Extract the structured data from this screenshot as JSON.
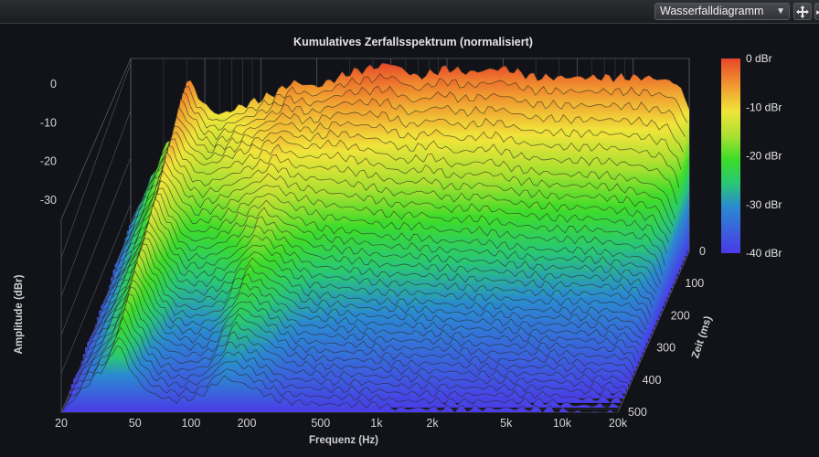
{
  "toolbar": {
    "view_selected": "Wasserfalldiagramm",
    "move_icon": "move-icon",
    "extra_icon": "arrow-icon"
  },
  "chart_data": {
    "type": "waterfall",
    "title": "Kumulatives Zerfallsspektrum (normalisiert)",
    "xlabel": "Frequenz (Hz)",
    "ylabel": "Amplitude (dBr)",
    "zlabel": "Zeit (ms)",
    "x_scale": "log",
    "x_ticks": [
      "20",
      "50",
      "100",
      "200",
      "500",
      "1k",
      "2k",
      "5k",
      "10k",
      "20k"
    ],
    "x_tick_values": [
      20,
      50,
      100,
      200,
      500,
      1000,
      2000,
      5000,
      10000,
      20000
    ],
    "xlim": [
      20,
      20000
    ],
    "y_ticks": [
      "0",
      "-10",
      "-20",
      "-30"
    ],
    "y_tick_values": [
      0,
      -10,
      -20,
      -30
    ],
    "ylim": [
      -40,
      0
    ],
    "z_ticks": [
      "0",
      "100",
      "200",
      "300",
      "400",
      "500"
    ],
    "z_tick_values": [
      0,
      100,
      200,
      300,
      400,
      500
    ],
    "zlim": [
      0,
      500
    ],
    "colorbar": {
      "labels": [
        "0 dBr",
        "-10 dBr",
        "-20 dBr",
        "-30 dBr",
        "-40 dBr"
      ],
      "values": [
        0,
        -10,
        -20,
        -30,
        -40
      ],
      "colors": [
        "#e8462a",
        "#f0e43a",
        "#3ddc2a",
        "#2a8ad0",
        "#4a3ae8"
      ]
    },
    "slice_count": 36,
    "slice_profiles_dbr": [
      {
        "time_ms": 0,
        "points": [
          [
            20,
            -34
          ],
          [
            36,
            -12
          ],
          [
            40,
            -3
          ],
          [
            50,
            -9
          ],
          [
            60,
            -11
          ],
          [
            80,
            -9
          ],
          [
            110,
            -7
          ],
          [
            150,
            -4
          ],
          [
            200,
            -5
          ],
          [
            300,
            -2
          ],
          [
            500,
            0
          ],
          [
            700,
            -3
          ],
          [
            1000,
            -1
          ],
          [
            1300,
            -2
          ],
          [
            2000,
            -1
          ],
          [
            3000,
            -3
          ],
          [
            5000,
            -3
          ],
          [
            8000,
            -3
          ],
          [
            12000,
            -3
          ],
          [
            17000,
            -4
          ],
          [
            20000,
            -9
          ]
        ]
      },
      {
        "time_ms": 100,
        "points": [
          [
            20,
            -35
          ],
          [
            36,
            -14
          ],
          [
            40,
            -6
          ],
          [
            50,
            -12
          ],
          [
            60,
            -14
          ],
          [
            80,
            -12
          ],
          [
            110,
            -10
          ],
          [
            150,
            -8
          ],
          [
            200,
            -10
          ],
          [
            300,
            -9
          ],
          [
            500,
            -11
          ],
          [
            700,
            -13
          ],
          [
            1000,
            -12
          ],
          [
            1300,
            -14
          ],
          [
            2000,
            -13
          ],
          [
            3000,
            -15
          ],
          [
            5000,
            -16
          ],
          [
            8000,
            -16
          ],
          [
            12000,
            -17
          ],
          [
            17000,
            -19
          ],
          [
            20000,
            -25
          ]
        ]
      },
      {
        "time_ms": 200,
        "points": [
          [
            20,
            -37
          ],
          [
            36,
            -18
          ],
          [
            40,
            -10
          ],
          [
            50,
            -17
          ],
          [
            60,
            -21
          ],
          [
            80,
            -20
          ],
          [
            110,
            -17
          ],
          [
            150,
            -14
          ],
          [
            200,
            -17
          ],
          [
            300,
            -20
          ],
          [
            500,
            -21
          ],
          [
            700,
            -22
          ],
          [
            1000,
            -22
          ],
          [
            1300,
            -23
          ],
          [
            2000,
            -23
          ],
          [
            3000,
            -24
          ],
          [
            5000,
            -25
          ],
          [
            8000,
            -25
          ],
          [
            12000,
            -26
          ],
          [
            17000,
            -27
          ],
          [
            20000,
            -32
          ]
        ]
      },
      {
        "time_ms": 300,
        "points": [
          [
            20,
            -38
          ],
          [
            36,
            -20
          ],
          [
            40,
            -13
          ],
          [
            50,
            -21
          ],
          [
            60,
            -26
          ],
          [
            80,
            -27
          ],
          [
            110,
            -25
          ],
          [
            150,
            -19
          ],
          [
            200,
            -22
          ],
          [
            300,
            -27
          ],
          [
            500,
            -28
          ],
          [
            700,
            -29
          ],
          [
            1000,
            -29
          ],
          [
            1300,
            -29
          ],
          [
            2000,
            -30
          ],
          [
            3000,
            -30
          ],
          [
            5000,
            -31
          ],
          [
            8000,
            -31
          ],
          [
            12000,
            -31
          ],
          [
            17000,
            -32
          ],
          [
            20000,
            -35
          ]
        ]
      },
      {
        "time_ms": 400,
        "points": [
          [
            20,
            -39
          ],
          [
            36,
            -23
          ],
          [
            40,
            -16
          ],
          [
            50,
            -25
          ],
          [
            60,
            -30
          ],
          [
            80,
            -32
          ],
          [
            110,
            -31
          ],
          [
            150,
            -24
          ],
          [
            200,
            -27
          ],
          [
            300,
            -32
          ],
          [
            500,
            -33
          ],
          [
            700,
            -33
          ],
          [
            1000,
            -34
          ],
          [
            1300,
            -34
          ],
          [
            2000,
            -34
          ],
          [
            3000,
            -35
          ],
          [
            5000,
            -35
          ],
          [
            8000,
            -35
          ],
          [
            12000,
            -36
          ],
          [
            17000,
            -36
          ],
          [
            20000,
            -38
          ]
        ]
      },
      {
        "time_ms": 500,
        "points": [
          [
            20,
            -40
          ],
          [
            36,
            -27
          ],
          [
            40,
            -22
          ],
          [
            50,
            -31
          ],
          [
            60,
            -35
          ],
          [
            80,
            -37
          ],
          [
            110,
            -36
          ],
          [
            150,
            -31
          ],
          [
            200,
            -33
          ],
          [
            300,
            -37
          ],
          [
            500,
            -38
          ],
          [
            700,
            -38
          ],
          [
            1000,
            -38
          ],
          [
            1300,
            -39
          ],
          [
            2000,
            -39
          ],
          [
            3000,
            -39
          ],
          [
            5000,
            -39
          ],
          [
            8000,
            -39
          ],
          [
            12000,
            -40
          ],
          [
            17000,
            -40
          ],
          [
            20000,
            -40
          ]
        ]
      }
    ]
  }
}
